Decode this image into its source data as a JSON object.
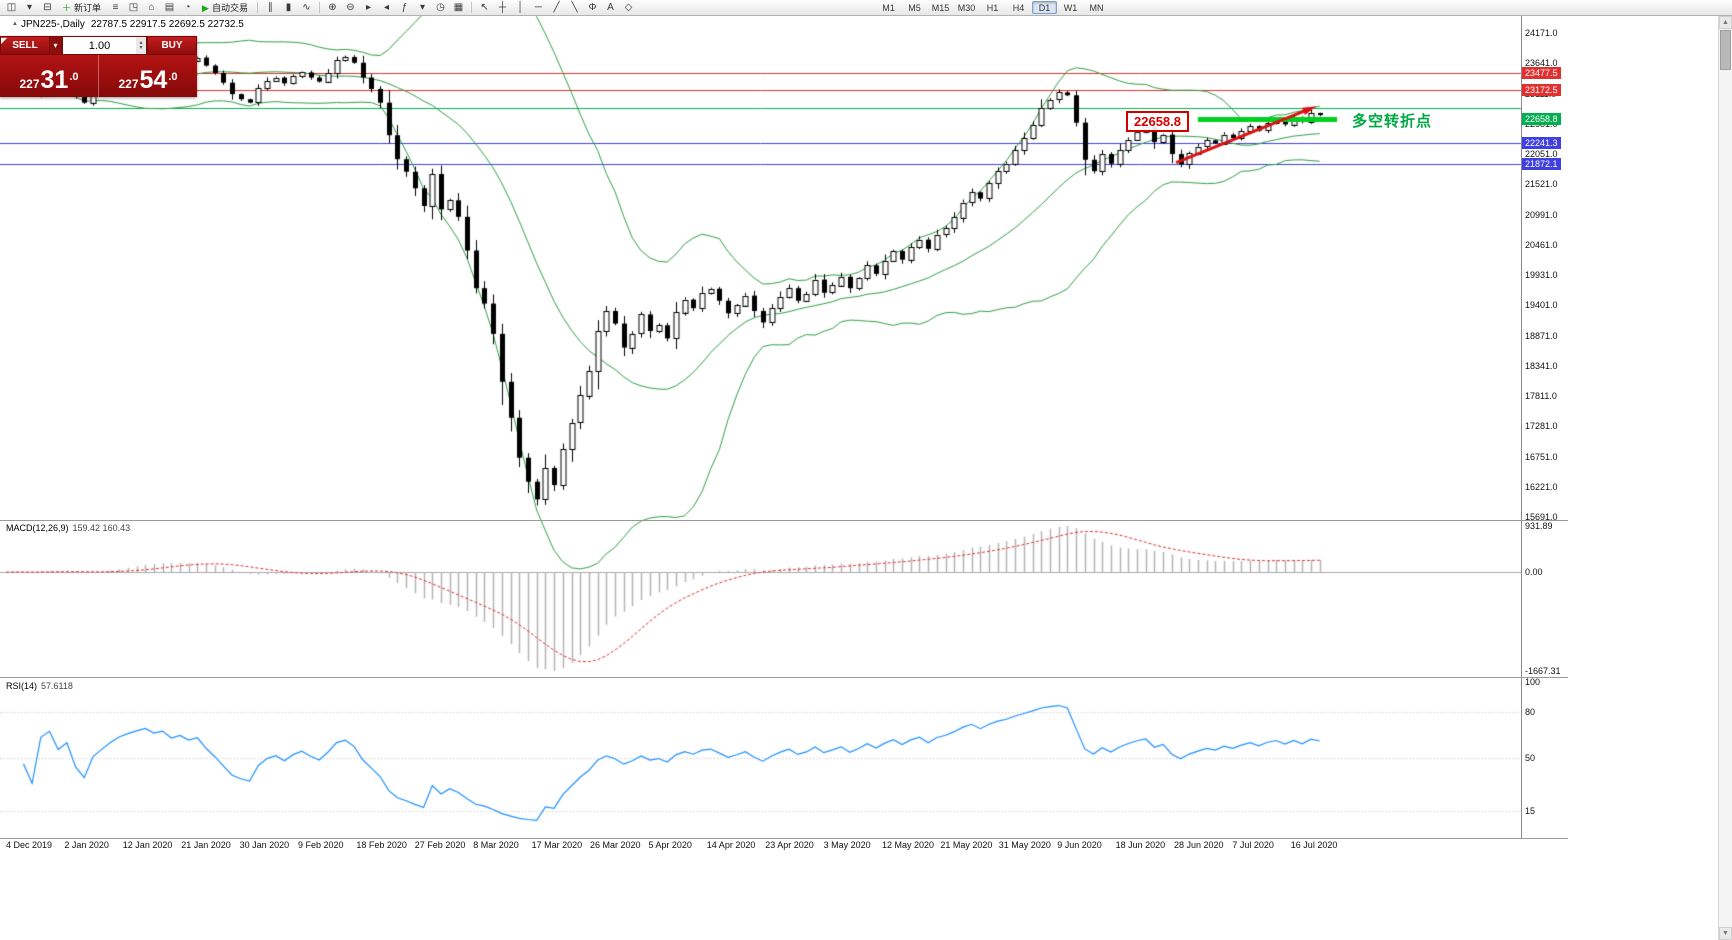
{
  "toolbar": {
    "buttons": [
      {
        "name": "new-chart",
        "icon": "◫"
      },
      {
        "name": "chart-dropdown",
        "icon": "▾"
      },
      {
        "name": "profiles",
        "icon": "⊟"
      },
      {
        "name": "new-order",
        "icon": "＋",
        "label": "新订单",
        "icon_color": "#18a818"
      },
      {
        "name": "market-watch",
        "icon": "≡"
      },
      {
        "name": "data-window",
        "icon": "◳"
      },
      {
        "name": "navigator",
        "icon": "⌂"
      },
      {
        "name": "terminal",
        "icon": "▤"
      },
      {
        "name": "strategy-tester",
        "icon": "◔"
      },
      {
        "name": "autotrading",
        "icon": "▶",
        "label": "自动交易",
        "icon_color": "#18a818"
      },
      {
        "sep": true
      },
      {
        "name": "bar-chart",
        "icon": "∥"
      },
      {
        "name": "candlestick-chart",
        "icon": "▮"
      },
      {
        "name": "line-chart",
        "icon": "∿"
      },
      {
        "sep": true
      },
      {
        "name": "zoom-in",
        "icon": "⊕"
      },
      {
        "name": "zoom-out",
        "icon": "⊖"
      },
      {
        "name": "auto-scroll",
        "icon": "▸"
      },
      {
        "name": "chart-shift",
        "icon": "◂"
      },
      {
        "name": "indicators",
        "icon": "ƒ"
      },
      {
        "name": "indicators-dropdown",
        "icon": "▾"
      },
      {
        "name": "periods",
        "icon": "◷"
      },
      {
        "name": "templates",
        "icon": "▦"
      },
      {
        "sep": true
      },
      {
        "name": "cursor",
        "icon": "↖"
      },
      {
        "name": "crosshair",
        "icon": "┼"
      },
      {
        "name": "vertical-line",
        "icon": "│"
      },
      {
        "name": "horizontal-line",
        "icon": "─"
      },
      {
        "name": "trendline",
        "icon": "╱"
      },
      {
        "name": "channel",
        "icon": "╲"
      },
      {
        "name": "fibonacci",
        "icon": "Φ"
      },
      {
        "name": "text-label",
        "icon": "A"
      },
      {
        "name": "shapes",
        "icon": "◇"
      }
    ],
    "timeframes": {
      "items": [
        "M1",
        "M5",
        "M15",
        "M30",
        "H1",
        "H4",
        "D1",
        "W1",
        "MN"
      ],
      "active": "D1"
    }
  },
  "trade_panel": {
    "sell_label": "SELL",
    "buy_label": "BUY",
    "volume": "1.00",
    "sell_price": "22731.0",
    "buy_price": "22754.0"
  },
  "chart": {
    "symbol_label": "JPN225-,Daily",
    "ohlc_label": "22787.5 22917.5 22692.5 22732.5",
    "annotation_box": "22658.8",
    "annotation_text": "多空转折点",
    "price_badges": [
      {
        "value": 23477.5,
        "text": "23477.5",
        "color": "#e03030"
      },
      {
        "value": 23172.5,
        "text": "23172.5",
        "color": "#e03030"
      },
      {
        "value": 22658.8,
        "text": "22658.8",
        "color": "#00b050"
      },
      {
        "value": 22241.3,
        "text": "22241.3",
        "color": "#4040e0"
      },
      {
        "value": 21872.1,
        "text": "21872.1",
        "color": "#4040e0"
      }
    ]
  },
  "chart_data": {
    "type": "candlestick",
    "title": "JPN225-,Daily",
    "x_labels": [
      "4 Dec 2019",
      "2 Jan 2020",
      "12 Jan 2020",
      "21 Jan 2020",
      "30 Jan 2020",
      "9 Feb 2020",
      "18 Feb 2020",
      "27 Feb 2020",
      "8 Mar 2020",
      "17 Mar 2020",
      "26 Mar 2020",
      "5 Apr 2020",
      "14 Apr 2020",
      "23 Apr 2020",
      "3 May 2020",
      "12 May 2020",
      "21 May 2020",
      "31 May 2020",
      "9 Jun 2020",
      "18 Jun 2020",
      "28 Jun 2020",
      "7 Jul 2020",
      "16 Jul 2020"
    ],
    "first_open": 23100,
    "closes": [
      23160,
      23220,
      23150,
      23100,
      23250,
      23290,
      23210,
      23260,
      23080,
      22950,
      23180,
      23290,
      23420,
      23550,
      23640,
      23720,
      23790,
      23730,
      23780,
      23690,
      23750,
      23690,
      23740,
      23600,
      23470,
      23300,
      23100,
      23010,
      22950,
      23200,
      23330,
      23390,
      23290,
      23410,
      23480,
      23390,
      23320,
      23470,
      23690,
      23750,
      23650,
      23390,
      23190,
      22950,
      22380,
      21960,
      21740,
      21450,
      21140,
      21700,
      21080,
      21240,
      20950,
      20360,
      19700,
      19430,
      18900,
      18060,
      17430,
      16730,
      16310,
      16000,
      16550,
      16250,
      16880,
      17340,
      17820,
      18250,
      18950,
      19300,
      19080,
      18660,
      18900,
      19240,
      18950,
      19050,
      18820,
      19280,
      19500,
      19350,
      19620,
      19690,
      19480,
      19260,
      19400,
      19570,
      19300,
      19100,
      19350,
      19550,
      19700,
      19480,
      19600,
      19850,
      19620,
      19750,
      19900,
      19700,
      19870,
      20100,
      19950,
      20180,
      20350,
      20200,
      20420,
      20550,
      20390,
      20640,
      20750,
      20940,
      21200,
      21380,
      21270,
      21540,
      21750,
      21880,
      22120,
      22330,
      22560,
      22860,
      23000,
      23130,
      23080,
      22600,
      21950,
      21750,
      22050,
      21880,
      22120,
      22300,
      22440,
      22530,
      22260,
      22390,
      22050,
      21870,
      22060,
      22180,
      22290,
      22240,
      22390,
      22330,
      22450,
      22540,
      22460,
      22590,
      22650,
      22570,
      22690,
      22620,
      22770,
      22732.5
    ],
    "price_axis": {
      "min": 15691.0,
      "max": 24171.0,
      "tick_values": [
        24171.0,
        23641.0,
        23111.0,
        22581.0,
        22051.0,
        21521.0,
        20991.0,
        20461.0,
        19931.0,
        19401.0,
        18871.0,
        18341.0,
        17811.0,
        17281.0,
        16751.0,
        16221.0,
        15691.0
      ]
    },
    "horizontal_lines": [
      {
        "price": 23477.5,
        "color": "#e03030",
        "width": 1
      },
      {
        "price": 23172.5,
        "color": "#e03030",
        "width": 1
      },
      {
        "price": 22850,
        "color": "#00b050",
        "width": 1
      },
      {
        "price": 22658.8,
        "color": "#00d020",
        "width": 5,
        "from_bar": 137,
        "to_bar": 153
      },
      {
        "price": 22241.3,
        "color": "#4040e0",
        "width": 1
      },
      {
        "price": 21872.1,
        "color": "#4040e0",
        "width": 1
      }
    ],
    "trendline": {
      "from_bar": 134.5,
      "from_price": 21900,
      "to_bar": 150,
      "to_price": 22850,
      "color": "#dd1111",
      "width": 3,
      "arrow": true
    },
    "indicators": {
      "bollinger": {
        "period": 20,
        "deviation": 2,
        "color": "#2f9e44"
      },
      "macd": {
        "label": "MACD(12,26,9)",
        "values_label": "159.42 160.43",
        "axis_labels": [
          "931.89",
          "0.00",
          "-1667.31"
        ],
        "histogram_color": "#b4b4b4",
        "signal_color": "#e03030"
      },
      "rsi": {
        "label": "RSI(14)",
        "value_label": "57.6118",
        "axis_labels": [
          100,
          80,
          50,
          15
        ],
        "levels": [
          80,
          50,
          15
        ],
        "color": "#1e90ff"
      }
    }
  },
  "scrollbar": {
    "up_icon": "▲",
    "down_icon": "▼"
  }
}
